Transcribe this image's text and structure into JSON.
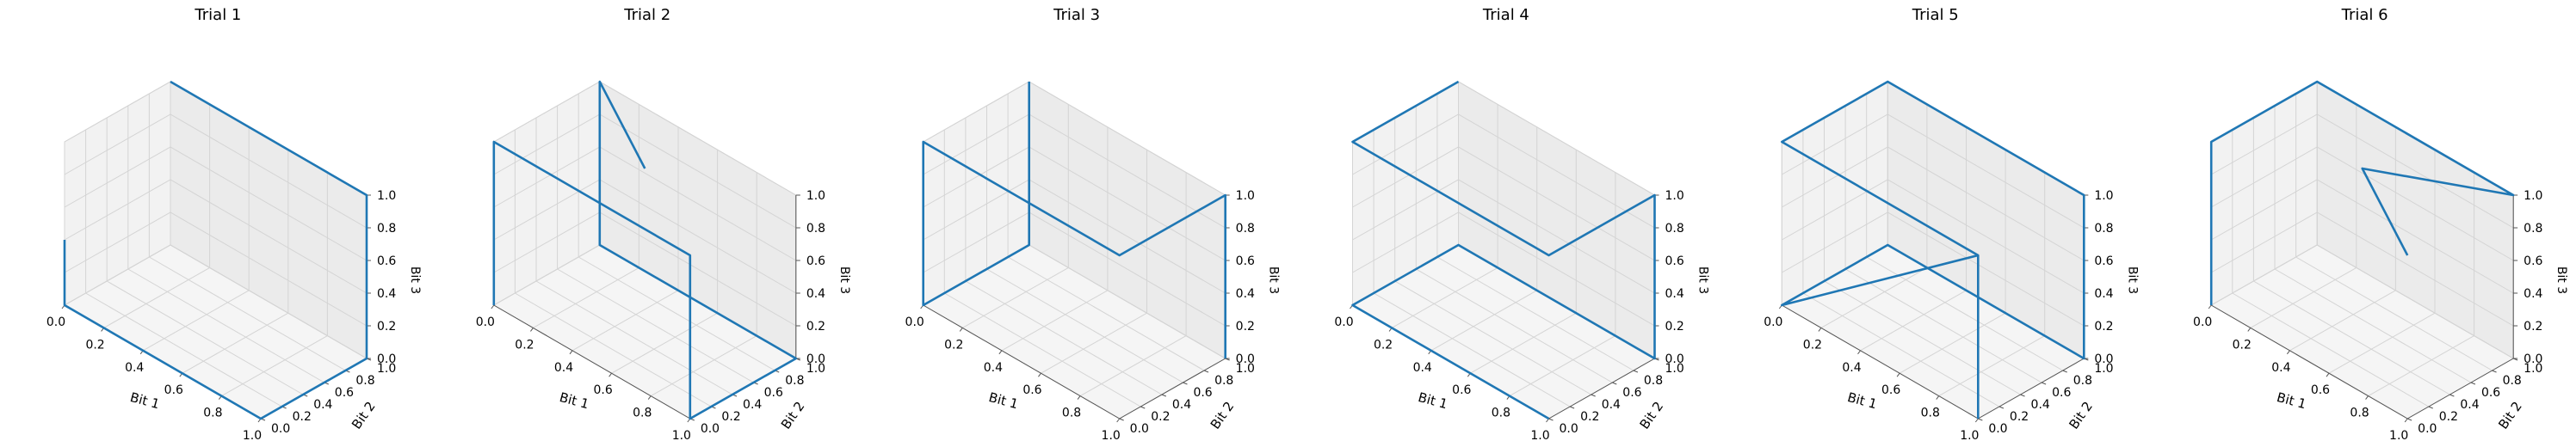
{
  "chart_data": [
    {
      "type": "line3d",
      "title": "Trial 1",
      "xlabel": "Bit 1",
      "ylabel": "Bit 2",
      "zlabel": "Bit 3",
      "xlim": [
        0,
        1
      ],
      "ylim": [
        0,
        1
      ],
      "zlim": [
        0,
        1
      ],
      "grid": true,
      "color": "#1f77b4",
      "x": [
        0,
        0,
        1,
        1,
        1,
        0
      ],
      "y": [
        0,
        0,
        0,
        1,
        1,
        1
      ],
      "z": [
        0.4,
        0,
        0,
        0,
        1,
        1
      ]
    },
    {
      "type": "line3d",
      "title": "Trial 2",
      "xlabel": "Bit 1",
      "ylabel": "Bit 2",
      "zlabel": "Bit 3",
      "xlim": [
        0,
        1
      ],
      "ylim": [
        0,
        1
      ],
      "zlim": [
        0,
        1
      ],
      "grid": true,
      "color": "#1f77b4",
      "x": [
        0.5,
        0,
        0,
        1,
        1,
        1,
        0,
        0
      ],
      "y": [
        0.5,
        1,
        1,
        1,
        0,
        0,
        0,
        0
      ],
      "z": [
        1,
        1,
        0,
        0,
        0,
        1,
        1,
        0
      ]
    },
    {
      "type": "line3d",
      "title": "Trial 3",
      "xlabel": "Bit 1",
      "ylabel": "Bit 2",
      "zlabel": "Bit 3",
      "xlim": [
        0,
        1
      ],
      "ylim": [
        0,
        1
      ],
      "zlim": [
        0,
        1
      ],
      "grid": true,
      "color": "#1f77b4",
      "x": [
        1,
        1,
        1,
        0,
        0,
        0,
        0
      ],
      "y": [
        1,
        1,
        0,
        0,
        0,
        1,
        1
      ],
      "z": [
        0,
        1,
        1,
        1,
        0,
        0,
        1
      ]
    },
    {
      "type": "line3d",
      "title": "Trial 4",
      "xlabel": "Bit 1",
      "ylabel": "Bit 2",
      "zlabel": "Bit 3",
      "xlim": [
        0,
        1
      ],
      "ylim": [
        0,
        1
      ],
      "zlim": [
        0,
        1
      ],
      "grid": true,
      "color": "#1f77b4",
      "x": [
        0,
        0,
        1,
        1,
        1,
        0,
        0,
        1
      ],
      "y": [
        1,
        0,
        0,
        1,
        1,
        1,
        0,
        0
      ],
      "z": [
        1,
        1,
        1,
        1,
        0,
        0,
        0,
        0
      ]
    },
    {
      "type": "line3d",
      "title": "Trial 5",
      "xlabel": "Bit 1",
      "ylabel": "Bit 2",
      "zlabel": "Bit 3",
      "xlim": [
        0,
        1
      ],
      "ylim": [
        0,
        1
      ],
      "zlim": [
        0,
        1
      ],
      "grid": true,
      "color": "#1f77b4",
      "x": [
        1,
        1,
        0,
        0,
        1,
        1,
        0,
        0,
        1
      ],
      "y": [
        0,
        0,
        0,
        1,
        1,
        1,
        1,
        0,
        0
      ],
      "z": [
        0,
        1,
        1,
        1,
        1,
        0,
        0,
        0,
        1
      ]
    },
    {
      "type": "line3d",
      "title": "Trial 6",
      "xlabel": "Bit 1",
      "ylabel": "Bit 2",
      "zlabel": "Bit 3",
      "xlim": [
        0,
        1
      ],
      "ylim": [
        0,
        1
      ],
      "zlim": [
        0,
        1
      ],
      "grid": true,
      "color": "#1f77b4",
      "x": [
        0,
        0,
        0,
        1,
        0.5,
        1
      ],
      "y": [
        0,
        0,
        1,
        1,
        0.5,
        0
      ],
      "z": [
        0,
        1,
        1,
        1,
        1,
        1
      ]
    }
  ]
}
